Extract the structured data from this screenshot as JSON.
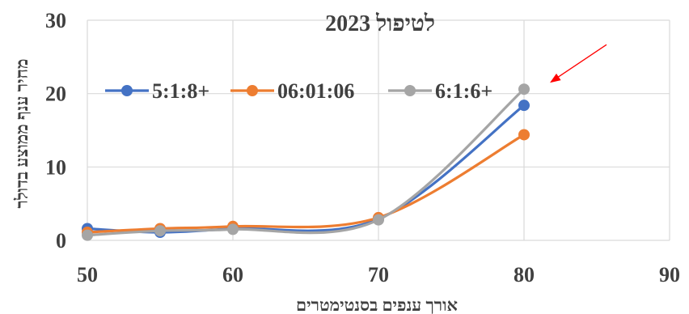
{
  "chart_data": {
    "type": "line",
    "title": "2023 לטיפול",
    "xlabel": "אורך ענפים בסנטימטרים",
    "ylabel": "מחיר ענף ממוצע בדולר",
    "xlim": [
      50,
      90
    ],
    "ylim": [
      0,
      30
    ],
    "xticks": [
      50,
      60,
      70,
      80,
      90
    ],
    "yticks": [
      0,
      10,
      20,
      30
    ],
    "grid": true,
    "smooth": true,
    "legend_position": "upper-left",
    "series": [
      {
        "name": "5:1:8+",
        "color": "#4472C4",
        "x": [
          50,
          55,
          60,
          70,
          80
        ],
        "y": [
          1.6,
          1.1,
          1.6,
          2.9,
          18.4
        ]
      },
      {
        "name": "06:01:06",
        "color": "#ED7D31",
        "x": [
          50,
          55,
          60,
          70,
          80
        ],
        "y": [
          1.1,
          1.6,
          1.9,
          3.1,
          14.4
        ]
      },
      {
        "name": "6:1:6+",
        "color": "#A5A5A5",
        "x": [
          50,
          55,
          60,
          70,
          80
        ],
        "y": [
          0.7,
          1.3,
          1.5,
          2.8,
          20.6
        ]
      }
    ],
    "annotation": {
      "type": "arrow",
      "color": "#FF0000",
      "target": {
        "x": 80,
        "y": 20.6
      }
    }
  }
}
